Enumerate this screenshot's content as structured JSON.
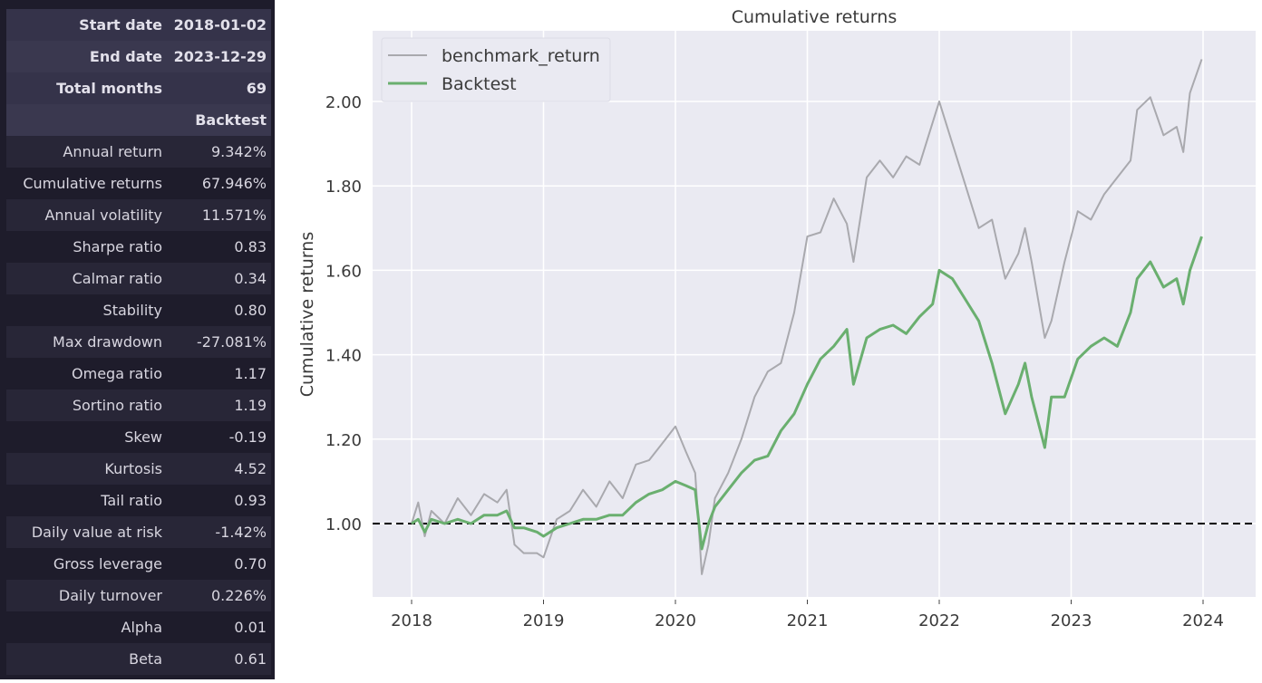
{
  "stats_table": {
    "header_rows": [
      {
        "label": "Start date",
        "value": "2018-01-02"
      },
      {
        "label": "End date",
        "value": "2023-12-29"
      },
      {
        "label": "Total months",
        "value": "69"
      },
      {
        "label": "",
        "value": "Backtest"
      }
    ],
    "rows": [
      {
        "label": "Annual return",
        "value": "9.342%"
      },
      {
        "label": "Cumulative returns",
        "value": "67.946%"
      },
      {
        "label": "Annual volatility",
        "value": "11.571%"
      },
      {
        "label": "Sharpe ratio",
        "value": "0.83"
      },
      {
        "label": "Calmar ratio",
        "value": "0.34"
      },
      {
        "label": "Stability",
        "value": "0.80"
      },
      {
        "label": "Max drawdown",
        "value": "-27.081%"
      },
      {
        "label": "Omega ratio",
        "value": "1.17"
      },
      {
        "label": "Sortino ratio",
        "value": "1.19"
      },
      {
        "label": "Skew",
        "value": "-0.19"
      },
      {
        "label": "Kurtosis",
        "value": "4.52"
      },
      {
        "label": "Tail ratio",
        "value": "0.93"
      },
      {
        "label": "Daily value at risk",
        "value": "-1.42%"
      },
      {
        "label": "Gross leverage",
        "value": "0.70"
      },
      {
        "label": "Daily turnover",
        "value": "0.226%"
      },
      {
        "label": "Alpha",
        "value": "0.01"
      },
      {
        "label": "Beta",
        "value": "0.61"
      }
    ]
  },
  "colors": {
    "benchmark": "#a9a9ae",
    "backtest": "#6aaf6f",
    "plot_bg": "#eaeaf2",
    "grid": "#ffffff",
    "baseline": "#000000"
  },
  "chart_data": {
    "type": "line",
    "title": "Cumulative returns",
    "xlabel": "",
    "ylabel": "Cumulative returns",
    "xlim": [
      2017.77,
      2024.4
    ],
    "ylim": [
      0.83,
      2.18
    ],
    "x_ticks": [
      "2018",
      "2019",
      "2020",
      "2021",
      "2022",
      "2023",
      "2024"
    ],
    "y_ticks": [
      "1.00",
      "1.20",
      "1.40",
      "1.60",
      "1.80",
      "2.00"
    ],
    "grid": true,
    "legend_position": "upper left",
    "reference_line": {
      "y": 1.0,
      "style": "dashed",
      "color": "#000000"
    },
    "x": [
      2018.0,
      2018.05,
      2018.1,
      2018.15,
      2018.25,
      2018.35,
      2018.45,
      2018.55,
      2018.65,
      2018.72,
      2018.78,
      2018.85,
      2018.95,
      2019.0,
      2019.1,
      2019.2,
      2019.3,
      2019.4,
      2019.5,
      2019.6,
      2019.7,
      2019.8,
      2019.9,
      2020.0,
      2020.08,
      2020.15,
      2020.2,
      2020.25,
      2020.3,
      2020.4,
      2020.5,
      2020.6,
      2020.7,
      2020.8,
      2020.9,
      2021.0,
      2021.1,
      2021.2,
      2021.3,
      2021.35,
      2021.45,
      2021.55,
      2021.65,
      2021.75,
      2021.85,
      2021.95,
      2022.0,
      2022.1,
      2022.2,
      2022.3,
      2022.4,
      2022.5,
      2022.6,
      2022.65,
      2022.7,
      2022.8,
      2022.85,
      2022.95,
      2023.05,
      2023.15,
      2023.25,
      2023.35,
      2023.45,
      2023.5,
      2023.6,
      2023.7,
      2023.8,
      2023.85,
      2023.9,
      2023.99
    ],
    "series": [
      {
        "name": "benchmark_return",
        "values": [
          1.0,
          1.05,
          0.97,
          1.03,
          1.0,
          1.06,
          1.02,
          1.07,
          1.05,
          1.08,
          0.95,
          0.93,
          0.93,
          0.92,
          1.01,
          1.03,
          1.08,
          1.04,
          1.1,
          1.06,
          1.14,
          1.15,
          1.19,
          1.23,
          1.17,
          1.12,
          0.88,
          0.95,
          1.06,
          1.12,
          1.2,
          1.3,
          1.36,
          1.38,
          1.5,
          1.68,
          1.69,
          1.77,
          1.71,
          1.62,
          1.82,
          1.86,
          1.82,
          1.87,
          1.85,
          1.95,
          2.0,
          1.9,
          1.8,
          1.7,
          1.72,
          1.58,
          1.64,
          1.7,
          1.62,
          1.44,
          1.48,
          1.62,
          1.74,
          1.72,
          1.78,
          1.82,
          1.86,
          1.98,
          2.01,
          1.92,
          1.94,
          1.88,
          2.02,
          2.1
        ]
      },
      {
        "name": "Backtest",
        "values": [
          1.0,
          1.01,
          0.98,
          1.01,
          1.0,
          1.01,
          1.0,
          1.02,
          1.02,
          1.03,
          0.99,
          0.99,
          0.98,
          0.97,
          0.99,
          1.0,
          1.01,
          1.01,
          1.02,
          1.02,
          1.05,
          1.07,
          1.08,
          1.1,
          1.09,
          1.08,
          0.94,
          1.0,
          1.04,
          1.08,
          1.12,
          1.15,
          1.16,
          1.22,
          1.26,
          1.33,
          1.39,
          1.42,
          1.46,
          1.33,
          1.44,
          1.46,
          1.47,
          1.45,
          1.49,
          1.52,
          1.6,
          1.58,
          1.53,
          1.48,
          1.38,
          1.26,
          1.33,
          1.38,
          1.3,
          1.18,
          1.3,
          1.3,
          1.39,
          1.42,
          1.44,
          1.42,
          1.5,
          1.58,
          1.62,
          1.56,
          1.58,
          1.52,
          1.6,
          1.68
        ]
      }
    ]
  }
}
